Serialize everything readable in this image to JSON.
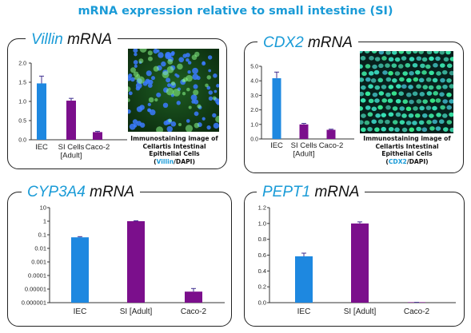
{
  "page": {
    "title": "mRNA expression relative to small intestine (SI)"
  },
  "panels": {
    "villin": {
      "gene": "Villin",
      "suffix": "mRNA",
      "caption": {
        "line1": "Immunostaining image of",
        "line2": "Cellartis Intestinal",
        "line3": "Epithelial Cells",
        "stain": "Villin",
        "slash": "/",
        "dapi": "DAPI)",
        "open": "("
      }
    },
    "cdx2": {
      "gene": "CDX2",
      "suffix": "mRNA",
      "caption": {
        "line1": "Immunostaining image of",
        "line2": "Cellartis Intestinal",
        "line3": "Epithelial Cells",
        "stain": "CDX2",
        "slash": "/",
        "dapi": "DAPI)",
        "open": "("
      }
    },
    "cyp3a4": {
      "gene": "CYP3A4",
      "suffix": "mRNA"
    },
    "pept1": {
      "gene": "PEPT1",
      "suffix": "mRNA"
    }
  },
  "colors": {
    "iec": "#1e88e0",
    "si": "#7b0f8c",
    "caco2": "#7b0f8c",
    "title": "#1a9bd7",
    "error": "#3f2f8f"
  },
  "chart_data": [
    {
      "id": "villin",
      "type": "bar",
      "scale": "linear",
      "categories": [
        [
          "IEC"
        ],
        [
          "SI Cells",
          "[Adult]"
        ],
        [
          "Caco-2"
        ]
      ],
      "values": [
        1.47,
        1.02,
        0.2
      ],
      "errors": [
        0.19,
        0.06,
        0.02
      ],
      "ylim": [
        0,
        2.0
      ],
      "yticks": [
        0,
        0.5,
        1.0,
        1.5,
        2.0
      ],
      "ytick_labels": [
        "0.0",
        "0.5",
        "1.0",
        "1.5",
        "2.0"
      ]
    },
    {
      "id": "cdx2",
      "type": "bar",
      "scale": "linear",
      "categories": [
        [
          "IEC"
        ],
        [
          "SI Cells",
          "[Adult]"
        ],
        [
          "Caco-2"
        ]
      ],
      "values": [
        4.18,
        1.0,
        0.63
      ],
      "errors": [
        0.42,
        0.07,
        0.04
      ],
      "ylim": [
        0,
        5.0
      ],
      "yticks": [
        0,
        1,
        2,
        3,
        4,
        5
      ],
      "ytick_labels": [
        "0.0",
        "1.0",
        "2.0",
        "3.0",
        "4.0",
        "5.0"
      ]
    },
    {
      "id": "cyp3a4",
      "type": "bar",
      "scale": "log",
      "categories": [
        [
          "IEC"
        ],
        [
          "SI [Adult]"
        ],
        [
          "Caco-2"
        ]
      ],
      "values": [
        0.065,
        1.0,
        6.5e-06
      ],
      "errors": [
        0.008,
        0.08,
        4.5e-06
      ],
      "ylim": [
        1e-06,
        10
      ],
      "yticks": [
        10,
        1,
        0.1,
        0.01,
        0.001,
        0.0001,
        1e-05,
        1e-06
      ],
      "ytick_labels": [
        "10",
        "1",
        "0.1",
        "0.01",
        "0.001",
        "0.0001",
        "0.00001",
        "0.000001"
      ]
    },
    {
      "id": "pept1",
      "type": "bar",
      "scale": "linear",
      "categories": [
        [
          "IEC"
        ],
        [
          "SI [Adult]"
        ],
        [
          "Caco-2"
        ]
      ],
      "values": [
        0.585,
        1.0,
        0.002
      ],
      "errors": [
        0.04,
        0.02,
        0.002
      ],
      "ylim": [
        0,
        1.2
      ],
      "yticks": [
        0,
        0.2,
        0.4,
        0.6,
        0.8,
        1.0,
        1.2
      ],
      "ytick_labels": [
        "0.0",
        "0.2",
        "0.4",
        "0.6",
        "0.8",
        "1.0",
        "1.2"
      ]
    }
  ]
}
